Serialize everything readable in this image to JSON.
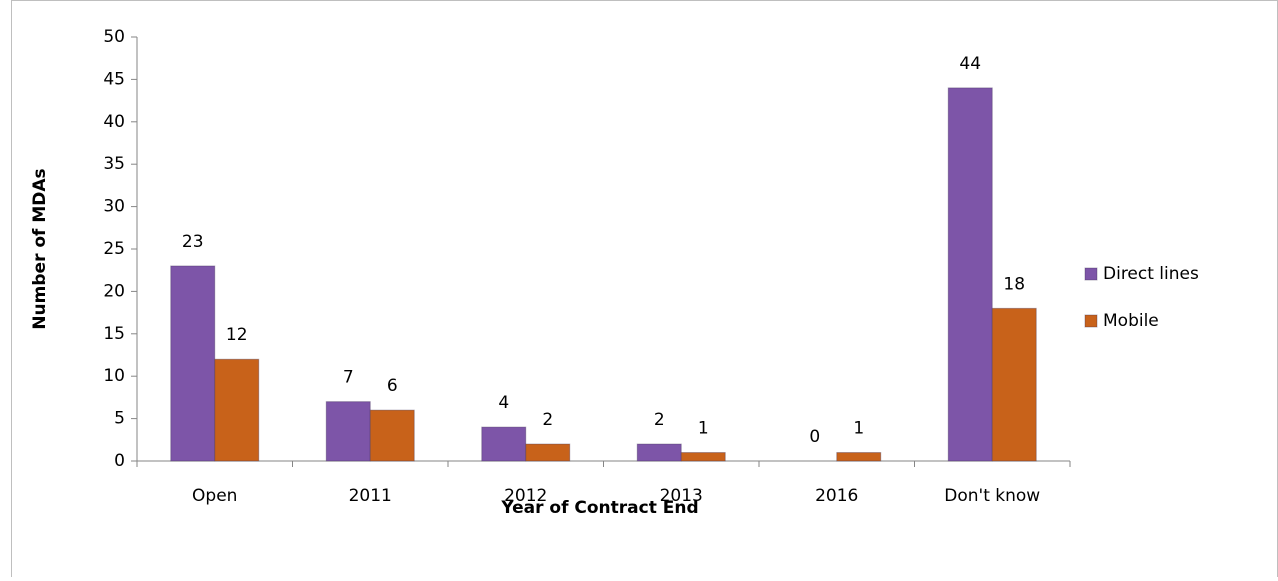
{
  "chart_data": {
    "type": "bar",
    "categories": [
      "Open",
      "2011",
      "2012",
      "2013",
      "2016",
      "Don't know"
    ],
    "series": [
      {
        "name": "Direct lines",
        "color": "#7d55a8",
        "values": [
          23,
          7,
          4,
          2,
          0,
          44
        ]
      },
      {
        "name": "Mobile",
        "color": "#c8621a",
        "values": [
          12,
          6,
          2,
          1,
          1,
          18
        ]
      }
    ],
    "xlabel": "Year of Contract End",
    "ylabel": "Number of MDAs",
    "ylim": [
      0,
      50
    ],
    "yticks": [
      0,
      5,
      10,
      15,
      20,
      25,
      30,
      35,
      40,
      45,
      50
    ],
    "legend": "right"
  }
}
